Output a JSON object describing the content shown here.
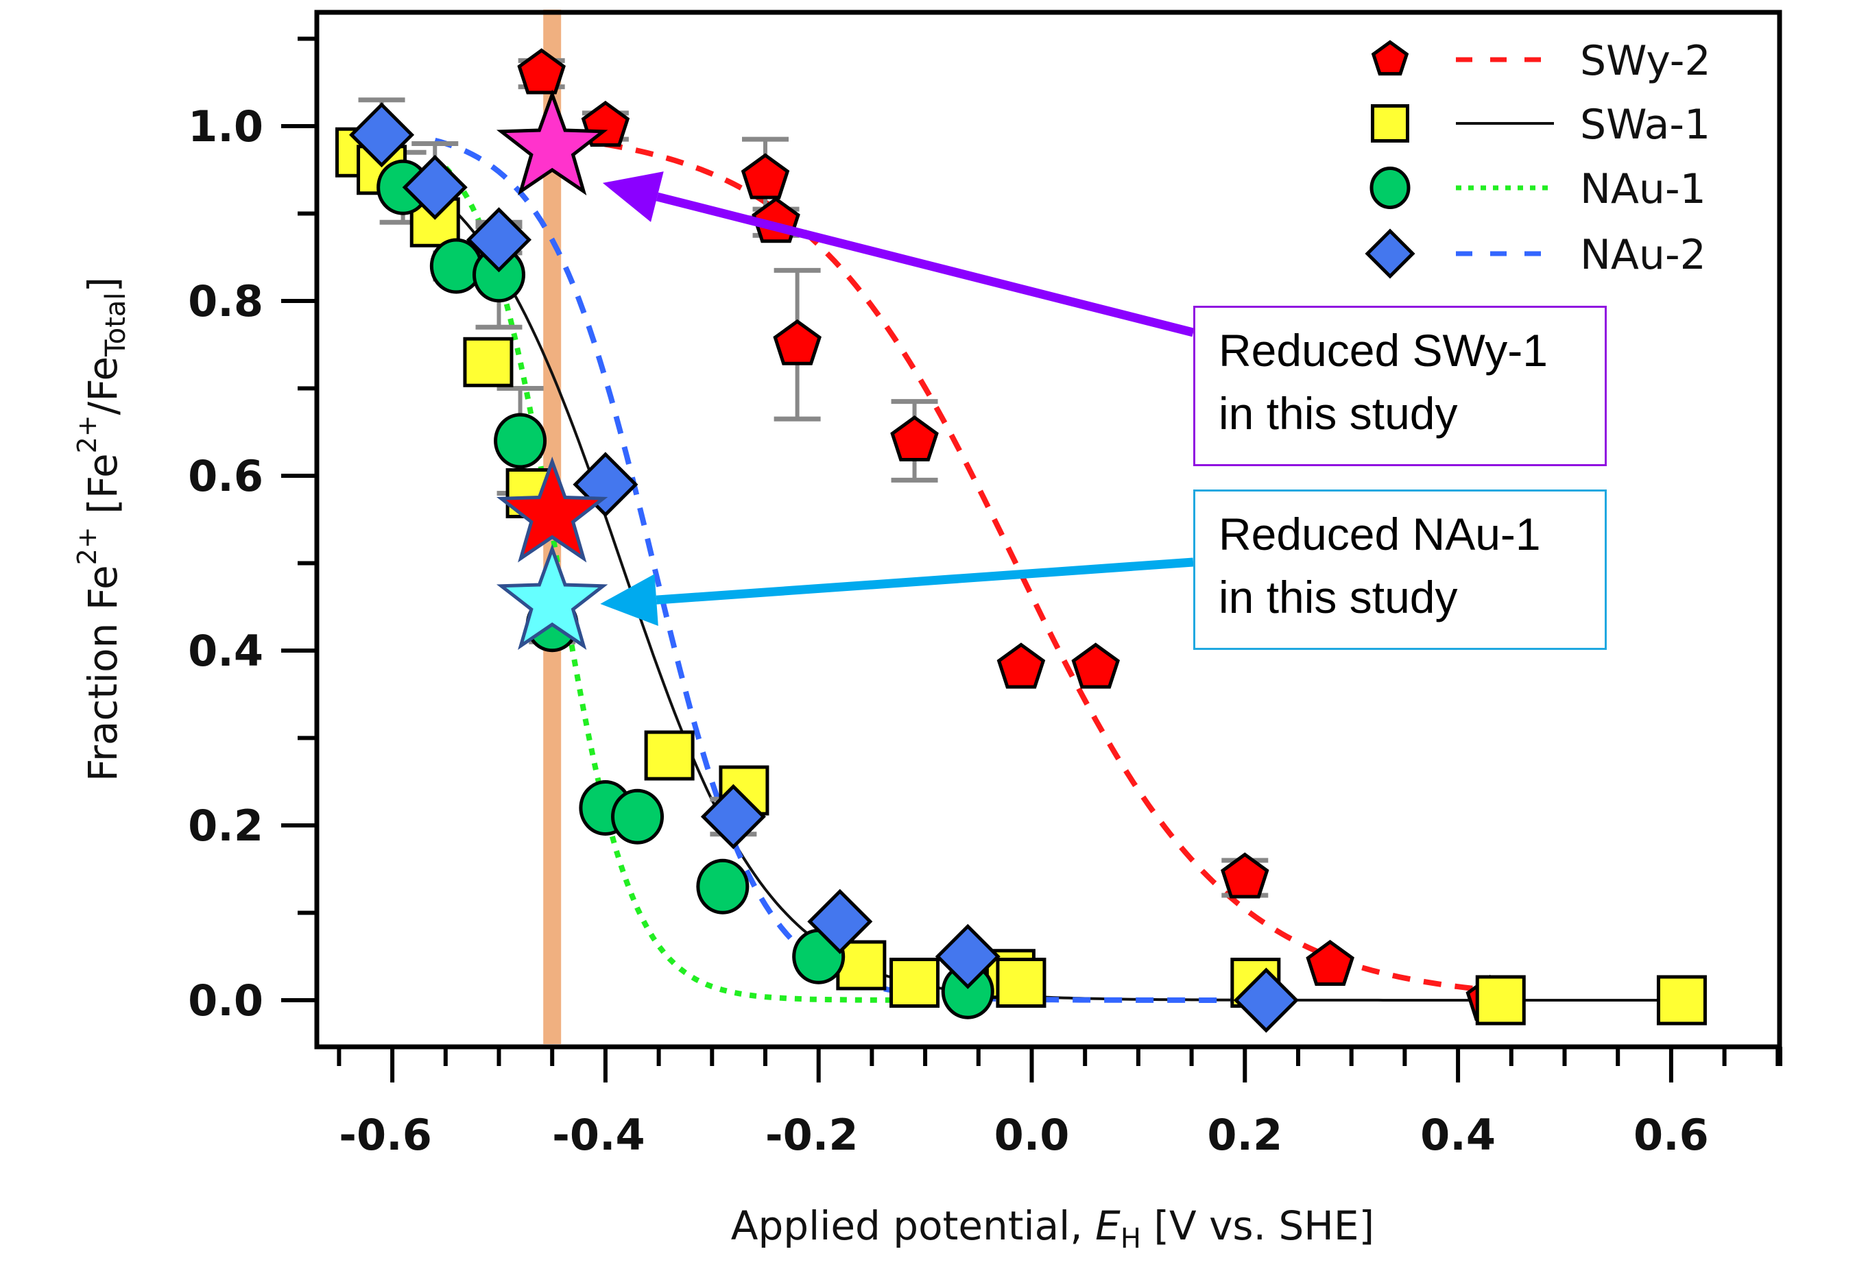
{
  "chart_data": {
    "type": "scatter",
    "title": "",
    "xlabel": "Applied potential, E_H [V vs. SHE]",
    "xlabel_parts": {
      "prefix": "Applied potential, ",
      "italic": "E",
      "sub": "H",
      "suffix": " [V vs. SHE]"
    },
    "ylabel": "Fraction Fe2+ [Fe2+/Fe_Total]",
    "ylabel_parts": {
      "a": "Fraction Fe",
      "sup1": "2+",
      "b": " [Fe",
      "sup2": "2+",
      "c": "/Fe",
      "sub": "Total",
      "d": "]"
    },
    "xlim": [
      -0.66,
      0.71
    ],
    "ylim": [
      -0.09,
      1.13
    ],
    "xticks": [
      -0.6,
      -0.4,
      -0.2,
      0.0,
      0.2,
      0.4,
      0.6
    ],
    "xtick_labels": [
      "-0.6",
      "-0.4",
      "-0.2",
      "0.0",
      "0.2",
      "0.4",
      "0.6"
    ],
    "x_minor_step": 0.05,
    "yticks": [
      0.0,
      0.2,
      0.4,
      0.6,
      0.8,
      1.0
    ],
    "ytick_labels": [
      "0.0",
      "0.2",
      "0.4",
      "0.6",
      "0.8",
      "1.0"
    ],
    "y_minor_step": 0.1,
    "grid": false,
    "legend_position": "top-right",
    "series": [
      {
        "name": "SWy-2",
        "marker": "pentagon",
        "fill": "#ff0000",
        "line_style": "dashed",
        "line_color": "#ff1a1a",
        "fit": {
          "model": "sigmoid",
          "midpoint": -0.015,
          "slope": 0.1,
          "x_range": [
            -0.43,
            0.43
          ]
        },
        "points": [
          {
            "x": -0.46,
            "y": 1.06,
            "err": 0.015
          },
          {
            "x": -0.4,
            "y": 1.0,
            "err": 0.015
          },
          {
            "x": -0.25,
            "y": 0.94,
            "err": 0.045
          },
          {
            "x": -0.24,
            "y": 0.89,
            "err": 0.015
          },
          {
            "x": -0.22,
            "y": 0.75,
            "err": 0.085
          },
          {
            "x": -0.11,
            "y": 0.64,
            "err": 0.045
          },
          {
            "x": -0.01,
            "y": 0.38,
            "err": 0.01
          },
          {
            "x": 0.06,
            "y": 0.38,
            "err": 0.01
          },
          {
            "x": 0.2,
            "y": 0.14,
            "err": 0.02
          },
          {
            "x": 0.28,
            "y": 0.04,
            "err": 0.01
          },
          {
            "x": 0.43,
            "y": 0.0,
            "err": 0.005
          }
        ]
      },
      {
        "name": "SWa-1",
        "marker": "square",
        "fill": "#ffff33",
        "line_style": "solid",
        "line_color": "#111111",
        "fit": {
          "model": "sigmoid",
          "midpoint": -0.385,
          "slope": 0.07,
          "x_range": [
            -0.63,
            0.62
          ]
        },
        "points": [
          {
            "x": -0.63,
            "y": 0.97,
            "err": 0.02
          },
          {
            "x": -0.61,
            "y": 0.95,
            "err": 0.01
          },
          {
            "x": -0.56,
            "y": 0.89,
            "err": 0.01
          },
          {
            "x": -0.51,
            "y": 0.73,
            "err": 0.01
          },
          {
            "x": -0.47,
            "y": 0.58,
            "err": 0.02
          },
          {
            "x": -0.34,
            "y": 0.28,
            "err": 0.01
          },
          {
            "x": -0.27,
            "y": 0.24,
            "err": 0.01
          },
          {
            "x": -0.16,
            "y": 0.04,
            "err": 0.005
          },
          {
            "x": -0.11,
            "y": 0.02,
            "err": 0.005
          },
          {
            "x": -0.02,
            "y": 0.03,
            "err": 0.005
          },
          {
            "x": -0.01,
            "y": 0.02,
            "err": 0.005
          },
          {
            "x": 0.21,
            "y": 0.02,
            "err": 0.005
          },
          {
            "x": 0.44,
            "y": 0.0,
            "err": 0.005
          },
          {
            "x": 0.61,
            "y": 0.0,
            "err": 0.005
          }
        ]
      },
      {
        "name": "NAu-1",
        "marker": "circle",
        "fill": "#00cc66",
        "line_style": "dotted",
        "line_color": "#22ee22",
        "fit": {
          "model": "sigmoid",
          "midpoint": -0.445,
          "slope": 0.035,
          "x_range": [
            -0.55,
            -0.06
          ]
        },
        "points": [
          {
            "x": -0.59,
            "y": 0.93,
            "err": 0.04
          },
          {
            "x": -0.54,
            "y": 0.84,
            "err": 0.015
          },
          {
            "x": -0.5,
            "y": 0.83,
            "err": 0.06
          },
          {
            "x": -0.48,
            "y": 0.64,
            "err": 0.06
          },
          {
            "x": -0.45,
            "y": 0.43,
            "err": 0.02
          },
          {
            "x": -0.4,
            "y": 0.22,
            "err": 0.01
          },
          {
            "x": -0.37,
            "y": 0.21,
            "err": 0.01
          },
          {
            "x": -0.29,
            "y": 0.13,
            "err": 0.005
          },
          {
            "x": -0.2,
            "y": 0.05,
            "err": 0.01
          },
          {
            "x": -0.06,
            "y": 0.01,
            "err": 0.005
          }
        ]
      },
      {
        "name": "NAu-2",
        "marker": "diamond",
        "fill": "#4477ee",
        "line_style": "dashed",
        "line_color": "#3366ff",
        "fit": {
          "model": "sigmoid",
          "midpoint": -0.355,
          "slope": 0.05,
          "x_range": [
            -0.56,
            0.22
          ]
        },
        "points": [
          {
            "x": -0.61,
            "y": 0.99,
            "err": 0.04
          },
          {
            "x": -0.56,
            "y": 0.93,
            "err": 0.05
          },
          {
            "x": -0.5,
            "y": 0.87,
            "err": 0.015
          },
          {
            "x": -0.4,
            "y": 0.59,
            "err": 0.01
          },
          {
            "x": -0.28,
            "y": 0.21,
            "err": 0.02
          },
          {
            "x": -0.18,
            "y": 0.09,
            "err": 0.005
          },
          {
            "x": -0.06,
            "y": 0.05,
            "err": 0.005
          },
          {
            "x": 0.22,
            "y": 0.0,
            "err": 0.005
          }
        ]
      }
    ],
    "reference_line": {
      "x": -0.45,
      "color": "#f0b080"
    },
    "highlights": [
      {
        "name": "Reduced SWy-1",
        "x": -0.45,
        "y": 0.975,
        "fill": "#ff33cc",
        "stroke": "#000000"
      },
      {
        "name": "Red star",
        "x": -0.45,
        "y": 0.555,
        "fill": "#ff0000",
        "stroke": "#2f4f8f"
      },
      {
        "name": "Reduced NAu-1",
        "x": -0.45,
        "y": 0.455,
        "fill": "#66ffff",
        "stroke": "#2f4f8f"
      }
    ],
    "annotations": [
      {
        "lines": [
          "Reduced SWy-1",
          "in this study"
        ],
        "border_color": "#9010e0",
        "arrow_color": "#8b00ff",
        "points_to": {
          "x": -0.4,
          "y": 0.935
        }
      },
      {
        "lines": [
          "Reduced NAu-1",
          "in this study"
        ],
        "border_color": "#20a8e0",
        "arrow_color": "#00aaee",
        "points_to": {
          "x": -0.41,
          "y": 0.455
        }
      }
    ]
  }
}
